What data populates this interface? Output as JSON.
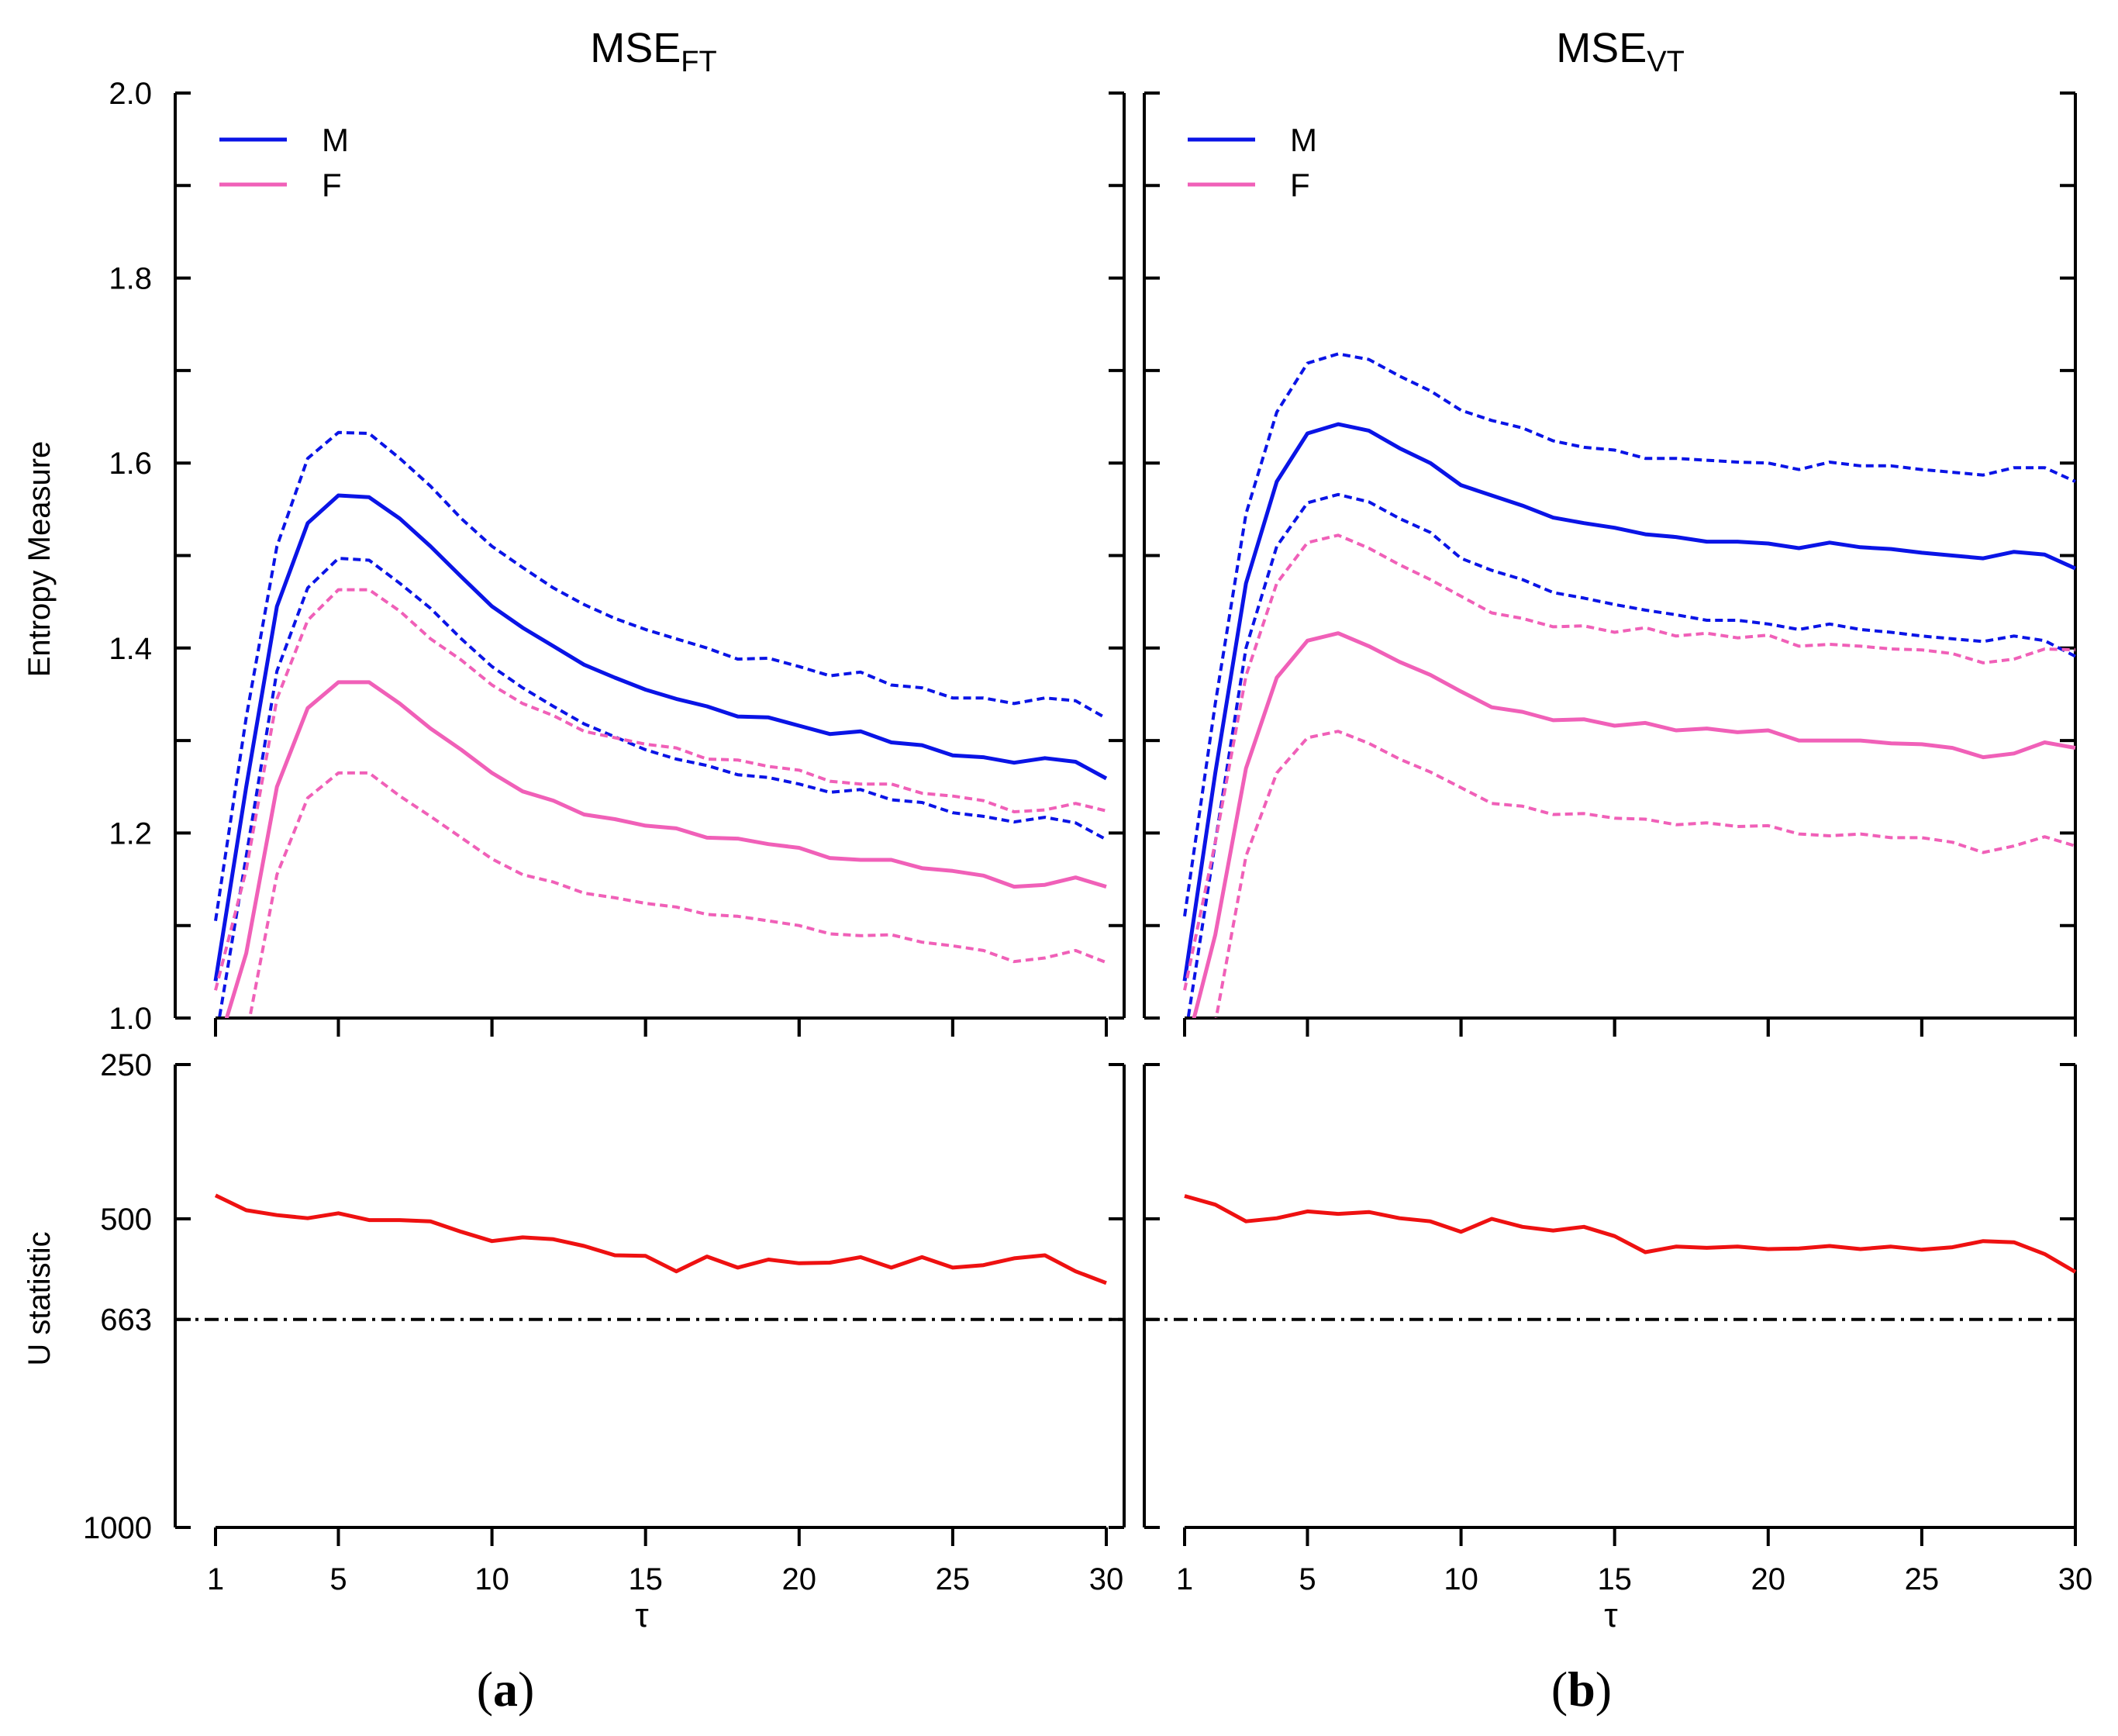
{
  "figure": {
    "panels": [
      {
        "title_main": "MSE",
        "title_sub": "FT",
        "label_letter": "a"
      },
      {
        "title_main": "MSE",
        "title_sub": "VT",
        "label_letter": "b"
      }
    ],
    "top_ylabel": "Entropy Measure",
    "bottom_ylabel": "U statistic",
    "xlabel": "τ",
    "legend": [
      {
        "name": "M",
        "color": "#0a14e6"
      },
      {
        "name": "F",
        "color": "#f060b8"
      }
    ],
    "threshold_color": "#000000",
    "u_color": "#ee1111"
  },
  "chart_data": [
    {
      "type": "line",
      "panel": "a",
      "title": "MSEFT",
      "ylabel": "Entropy Measure",
      "xlabel": "τ",
      "xlim": [
        1,
        30
      ],
      "ylim": [
        1.0,
        2.0
      ],
      "xticks": [
        1,
        5,
        10,
        15,
        20,
        25,
        30
      ],
      "yticks": [
        1.0,
        1.2,
        1.4,
        1.6,
        1.8,
        2.0
      ],
      "x": [
        1,
        2,
        3,
        4,
        5,
        6,
        7,
        8,
        9,
        10,
        11,
        12,
        13,
        14,
        15,
        16,
        17,
        18,
        19,
        20,
        21,
        22,
        23,
        24,
        25,
        26,
        27,
        28,
        29,
        30
      ],
      "series": [
        {
          "name": "M",
          "style": "solid",
          "values": [
            1.04,
            1.25,
            1.445,
            1.535,
            1.565,
            1.563,
            1.54,
            1.51,
            1.477,
            1.445,
            1.422,
            1.402,
            1.382,
            1.368,
            1.355,
            1.345,
            1.337,
            1.326,
            1.325,
            1.316,
            1.307,
            1.31,
            1.298,
            1.295,
            1.284,
            1.282,
            1.276,
            1.281,
            1.277,
            1.259
          ]
        },
        {
          "name": "M upper",
          "style": "dashed",
          "values": [
            1.105,
            1.325,
            1.51,
            1.605,
            1.633,
            1.632,
            1.605,
            1.575,
            1.54,
            1.51,
            1.487,
            1.465,
            1.447,
            1.432,
            1.42,
            1.41,
            1.4,
            1.388,
            1.389,
            1.38,
            1.37,
            1.374,
            1.36,
            1.357,
            1.346,
            1.346,
            1.34,
            1.346,
            1.343,
            1.324
          ]
        },
        {
          "name": "M lower",
          "style": "dashed",
          "values": [
            0.975,
            1.175,
            1.375,
            1.465,
            1.497,
            1.495,
            1.47,
            1.443,
            1.41,
            1.38,
            1.357,
            1.337,
            1.318,
            1.304,
            1.29,
            1.28,
            1.273,
            1.263,
            1.26,
            1.253,
            1.244,
            1.247,
            1.236,
            1.233,
            1.222,
            1.218,
            1.212,
            1.217,
            1.211,
            1.193
          ]
        },
        {
          "name": "F",
          "style": "solid",
          "values": [
            0.96,
            1.07,
            1.25,
            1.335,
            1.363,
            1.363,
            1.34,
            1.313,
            1.29,
            1.265,
            1.245,
            1.235,
            1.22,
            1.215,
            1.208,
            1.205,
            1.195,
            1.194,
            1.188,
            1.184,
            1.173,
            1.171,
            1.171,
            1.162,
            1.159,
            1.154,
            1.142,
            1.144,
            1.152,
            1.142
          ]
        },
        {
          "name": "F upper",
          "style": "dashed",
          "values": [
            1.03,
            1.16,
            1.345,
            1.43,
            1.463,
            1.463,
            1.44,
            1.41,
            1.387,
            1.36,
            1.34,
            1.327,
            1.31,
            1.303,
            1.296,
            1.292,
            1.28,
            1.279,
            1.272,
            1.268,
            1.256,
            1.253,
            1.253,
            1.243,
            1.24,
            1.235,
            1.223,
            1.225,
            1.232,
            1.224
          ]
        },
        {
          "name": "F lower",
          "style": "dashed",
          "values": [
            0.89,
            0.98,
            1.155,
            1.238,
            1.265,
            1.265,
            1.24,
            1.218,
            1.195,
            1.172,
            1.155,
            1.147,
            1.135,
            1.13,
            1.124,
            1.12,
            1.112,
            1.11,
            1.105,
            1.1,
            1.091,
            1.089,
            1.09,
            1.082,
            1.078,
            1.073,
            1.061,
            1.065,
            1.073,
            1.06
          ]
        }
      ]
    },
    {
      "type": "line",
      "panel": "a",
      "ylabel": "U statistic",
      "xlabel": "τ",
      "xlim": [
        1,
        30
      ],
      "ylim": [
        250,
        1000
      ],
      "yticks": [
        250,
        500,
        663,
        1000
      ],
      "threshold": 663,
      "x": [
        1,
        2,
        3,
        4,
        5,
        6,
        7,
        8,
        9,
        10,
        11,
        12,
        13,
        14,
        15,
        16,
        17,
        18,
        19,
        20,
        21,
        22,
        23,
        24,
        25,
        26,
        27,
        28,
        29,
        30
      ],
      "series": [
        {
          "name": "U",
          "values": [
            462,
            486,
            494,
            499,
            491,
            502,
            502,
            504,
            521,
            536,
            530,
            533,
            544,
            559,
            560,
            585,
            561,
            579,
            566,
            572,
            571,
            562,
            579,
            562,
            579,
            575,
            564,
            559,
            585,
            604
          ]
        }
      ]
    },
    {
      "type": "line",
      "panel": "b",
      "title": "MSEVT",
      "ylabel": "Entropy Measure",
      "xlabel": "τ",
      "xlim": [
        1,
        30
      ],
      "ylim": [
        1.0,
        2.0
      ],
      "xticks": [
        1,
        5,
        10,
        15,
        20,
        25,
        30
      ],
      "yticks": [
        1.0,
        1.2,
        1.4,
        1.6,
        1.8,
        2.0
      ],
      "x": [
        1,
        2,
        3,
        4,
        5,
        6,
        7,
        8,
        9,
        10,
        11,
        12,
        13,
        14,
        15,
        16,
        17,
        18,
        19,
        20,
        21,
        22,
        23,
        24,
        25,
        26,
        27,
        28,
        29,
        30
      ],
      "series": [
        {
          "name": "M",
          "style": "solid",
          "values": [
            1.04,
            1.265,
            1.47,
            1.58,
            1.632,
            1.642,
            1.635,
            1.616,
            1.6,
            1.576,
            1.565,
            1.554,
            1.541,
            1.535,
            1.53,
            1.523,
            1.52,
            1.515,
            1.515,
            1.513,
            1.508,
            1.514,
            1.509,
            1.507,
            1.503,
            1.5,
            1.497,
            1.504,
            1.501,
            1.486
          ]
        },
        {
          "name": "M upper",
          "style": "dashed",
          "values": [
            1.11,
            1.34,
            1.545,
            1.655,
            1.708,
            1.718,
            1.712,
            1.694,
            1.678,
            1.657,
            1.646,
            1.638,
            1.624,
            1.617,
            1.614,
            1.605,
            1.605,
            1.603,
            1.601,
            1.6,
            1.593,
            1.601,
            1.597,
            1.597,
            1.593,
            1.59,
            1.587,
            1.595,
            1.595,
            1.58
          ]
        },
        {
          "name": "M lower",
          "style": "dashed",
          "values": [
            0.975,
            1.19,
            1.4,
            1.51,
            1.557,
            1.566,
            1.558,
            1.54,
            1.525,
            1.497,
            1.484,
            1.474,
            1.46,
            1.454,
            1.447,
            1.441,
            1.436,
            1.43,
            1.43,
            1.426,
            1.42,
            1.426,
            1.42,
            1.417,
            1.413,
            1.41,
            1.407,
            1.413,
            1.408,
            1.391
          ]
        },
        {
          "name": "F",
          "style": "solid",
          "values": [
            0.96,
            1.09,
            1.27,
            1.368,
            1.408,
            1.416,
            1.402,
            1.385,
            1.371,
            1.353,
            1.336,
            1.331,
            1.322,
            1.323,
            1.316,
            1.319,
            1.311,
            1.313,
            1.309,
            1.311,
            1.3,
            1.3,
            1.3,
            1.297,
            1.296,
            1.292,
            1.282,
            1.286,
            1.298,
            1.292
          ]
        },
        {
          "name": "F upper",
          "style": "dashed",
          "values": [
            1.03,
            1.19,
            1.37,
            1.47,
            1.514,
            1.522,
            1.508,
            1.49,
            1.474,
            1.456,
            1.438,
            1.432,
            1.423,
            1.424,
            1.417,
            1.422,
            1.413,
            1.416,
            1.411,
            1.414,
            1.402,
            1.404,
            1.402,
            1.399,
            1.398,
            1.394,
            1.384,
            1.388,
            1.399,
            1.398
          ]
        },
        {
          "name": "F lower",
          "style": "dashed",
          "values": [
            0.89,
            0.995,
            1.175,
            1.265,
            1.303,
            1.31,
            1.297,
            1.28,
            1.266,
            1.249,
            1.232,
            1.229,
            1.22,
            1.221,
            1.216,
            1.215,
            1.209,
            1.211,
            1.207,
            1.208,
            1.199,
            1.197,
            1.199,
            1.195,
            1.195,
            1.19,
            1.179,
            1.186,
            1.196,
            1.186
          ]
        }
      ]
    },
    {
      "type": "line",
      "panel": "b",
      "ylabel": "U statistic",
      "xlabel": "τ",
      "xlim": [
        1,
        30
      ],
      "ylim": [
        250,
        1000
      ],
      "yticks": [
        250,
        500,
        663,
        1000
      ],
      "threshold": 663,
      "x": [
        1,
        2,
        3,
        4,
        5,
        6,
        7,
        8,
        9,
        10,
        11,
        12,
        13,
        14,
        15,
        16,
        17,
        18,
        19,
        20,
        21,
        22,
        23,
        24,
        25,
        26,
        27,
        28,
        29,
        30
      ],
      "series": [
        {
          "name": "U",
          "values": [
            463,
            477,
            504,
            499,
            488,
            492,
            489,
            499,
            504,
            521,
            500,
            513,
            519,
            513,
            528,
            554,
            545,
            547,
            545,
            549,
            548,
            544,
            549,
            545,
            550,
            546,
            536,
            538,
            557,
            586
          ]
        }
      ]
    }
  ]
}
